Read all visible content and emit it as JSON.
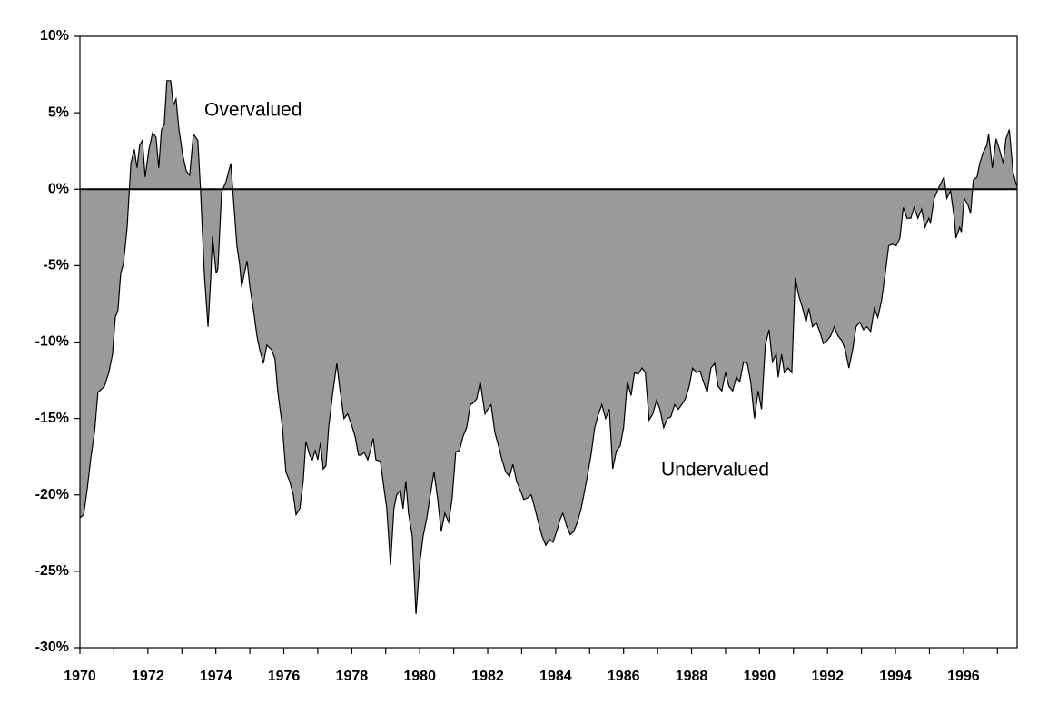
{
  "chart_data": {
    "type": "area",
    "color": "#9a9a9a",
    "line_color": "#000000",
    "annotations": [
      "Overvalued",
      "Undervalued"
    ],
    "xlim": [
      1970,
      1997.58
    ],
    "xticks": [
      1970,
      1972,
      1974,
      1976,
      1978,
      1980,
      1982,
      1984,
      1986,
      1988,
      1990,
      1992,
      1994,
      1996
    ],
    "xminor_ticks": [
      1971,
      1973,
      1975,
      1977,
      1979,
      1981,
      1983,
      1985,
      1987,
      1989,
      1991,
      1993,
      1995,
      1997
    ],
    "ylim": [
      -30,
      10
    ],
    "yticks": [
      {
        "value": -30,
        "label": "-30%"
      },
      {
        "value": -25,
        "label": "-25%"
      },
      {
        "value": -20,
        "label": "-20%"
      },
      {
        "value": -15,
        "label": "-15%"
      },
      {
        "value": -10,
        "label": "-10%"
      },
      {
        "value": -5,
        "label": "-5%"
      },
      {
        "value": 0,
        "label": "0%"
      },
      {
        "value": 5,
        "label": "5%"
      },
      {
        "value": 10,
        "label": "10%"
      }
    ],
    "x": [
      1970.0,
      1970.11,
      1970.21,
      1970.32,
      1970.43,
      1970.53,
      1970.72,
      1970.85,
      1970.96,
      1971.04,
      1971.12,
      1971.2,
      1971.28,
      1971.39,
      1971.5,
      1971.6,
      1971.68,
      1971.76,
      1971.84,
      1971.92,
      1972.03,
      1972.14,
      1972.24,
      1972.32,
      1972.4,
      1972.48,
      1972.56,
      1972.67,
      1972.75,
      1972.83,
      1972.91,
      1973.02,
      1973.13,
      1973.23,
      1973.34,
      1973.47,
      1973.55,
      1973.66,
      1973.77,
      1973.85,
      1973.9,
      1974.01,
      1974.06,
      1974.17,
      1974.3,
      1974.44,
      1974.54,
      1974.62,
      1974.7,
      1974.76,
      1974.84,
      1974.92,
      1975.0,
      1975.1,
      1975.21,
      1975.29,
      1975.4,
      1975.5,
      1975.64,
      1975.74,
      1975.82,
      1975.96,
      1976.06,
      1976.17,
      1976.28,
      1976.36,
      1976.47,
      1976.57,
      1976.65,
      1976.76,
      1976.84,
      1976.92,
      1977.0,
      1977.08,
      1977.16,
      1977.24,
      1977.32,
      1977.43,
      1977.56,
      1977.64,
      1977.77,
      1977.88,
      1978.02,
      1978.1,
      1978.2,
      1978.28,
      1978.36,
      1978.47,
      1978.55,
      1978.63,
      1978.71,
      1978.84,
      1978.92,
      1979.03,
      1979.14,
      1979.24,
      1979.32,
      1979.43,
      1979.51,
      1979.59,
      1979.67,
      1979.78,
      1979.89,
      1980.0,
      1980.1,
      1980.21,
      1980.31,
      1980.42,
      1980.53,
      1980.63,
      1980.74,
      1980.85,
      1980.95,
      1981.06,
      1981.17,
      1981.27,
      1981.38,
      1981.49,
      1981.57,
      1981.68,
      1981.78,
      1981.92,
      1982.0,
      1982.1,
      1982.21,
      1982.32,
      1982.42,
      1982.53,
      1982.64,
      1982.74,
      1982.85,
      1982.96,
      1983.06,
      1983.17,
      1983.28,
      1983.39,
      1983.49,
      1983.6,
      1983.71,
      1983.81,
      1983.92,
      1984.03,
      1984.13,
      1984.21,
      1984.32,
      1984.43,
      1984.53,
      1984.64,
      1984.75,
      1984.83,
      1984.93,
      1985.04,
      1985.15,
      1985.26,
      1985.36,
      1985.47,
      1985.58,
      1985.68,
      1985.79,
      1985.9,
      1986.0,
      1986.11,
      1986.22,
      1986.32,
      1986.43,
      1986.54,
      1986.64,
      1986.75,
      1986.86,
      1986.97,
      1987.07,
      1987.18,
      1987.29,
      1987.39,
      1987.5,
      1987.61,
      1987.71,
      1987.82,
      1987.93,
      1988.03,
      1988.14,
      1988.25,
      1988.35,
      1988.46,
      1988.57,
      1988.68,
      1988.78,
      1988.89,
      1989.0,
      1989.1,
      1989.21,
      1989.32,
      1989.42,
      1989.53,
      1989.64,
      1989.74,
      1989.85,
      1989.96,
      1990.06,
      1990.17,
      1990.28,
      1990.38,
      1990.49,
      1990.55,
      1990.65,
      1990.73,
      1990.84,
      1990.95,
      1991.05,
      1991.16,
      1991.27,
      1991.37,
      1991.45,
      1991.56,
      1991.67,
      1991.77,
      1991.88,
      1991.99,
      1992.09,
      1992.2,
      1992.31,
      1992.42,
      1992.52,
      1992.63,
      1992.74,
      1992.84,
      1992.95,
      1993.06,
      1993.16,
      1993.27,
      1993.38,
      1993.48,
      1993.59,
      1993.7,
      1993.8,
      1993.91,
      1994.02,
      1994.13,
      1994.23,
      1994.34,
      1994.45,
      1994.55,
      1994.66,
      1994.77,
      1994.87,
      1994.98,
      1995.03,
      1995.14,
      1995.25,
      1995.36,
      1995.43,
      1995.51,
      1995.62,
      1995.73,
      1995.78,
      1995.89,
      1995.94,
      1996.02,
      1996.13,
      1996.21,
      1996.29,
      1996.4,
      1996.48,
      1996.58,
      1996.69,
      1996.74,
      1996.85,
      1996.96,
      1997.06,
      1997.17,
      1997.25,
      1997.35,
      1997.46,
      1997.57
    ],
    "values": [
      -21.5,
      -21.3,
      -19.7,
      -17.6,
      -15.9,
      -13.3,
      -12.9,
      -12.0,
      -10.8,
      -8.4,
      -7.9,
      -5.5,
      -4.9,
      -2.5,
      1.7,
      2.6,
      1.4,
      2.9,
      3.2,
      0.8,
      2.6,
      3.7,
      3.4,
      1.4,
      3.9,
      4.2,
      7.1,
      7.1,
      5.5,
      5.9,
      4.0,
      2.3,
      1.2,
      0.9,
      3.6,
      3.2,
      -0.1,
      -5.5,
      -9.0,
      -5.8,
      -3.1,
      -5.5,
      -5.2,
      -0.2,
      0.5,
      1.7,
      -1.3,
      -3.7,
      -4.9,
      -6.4,
      -5.5,
      -4.7,
      -6.4,
      -7.8,
      -9.6,
      -10.5,
      -11.4,
      -10.2,
      -10.5,
      -11.1,
      -13.2,
      -15.6,
      -18.5,
      -19.1,
      -20.0,
      -21.3,
      -20.9,
      -19.1,
      -16.5,
      -17.4,
      -17.7,
      -17.1,
      -17.7,
      -16.6,
      -18.3,
      -18.1,
      -15.6,
      -13.5,
      -11.4,
      -12.9,
      -15.0,
      -14.7,
      -15.6,
      -16.2,
      -17.4,
      -17.4,
      -17.2,
      -17.7,
      -17.1,
      -16.3,
      -17.7,
      -17.8,
      -19.1,
      -20.9,
      -24.6,
      -20.9,
      -20.0,
      -19.7,
      -20.9,
      -19.1,
      -21.2,
      -22.7,
      -27.8,
      -24.5,
      -22.7,
      -21.5,
      -20.0,
      -18.5,
      -20.3,
      -22.4,
      -21.2,
      -21.8,
      -20.3,
      -17.2,
      -17.1,
      -16.2,
      -15.6,
      -14.1,
      -14.0,
      -13.7,
      -12.6,
      -14.7,
      -14.4,
      -14.1,
      -15.9,
      -16.8,
      -17.7,
      -18.5,
      -18.8,
      -18.0,
      -19.1,
      -19.7,
      -20.3,
      -20.2,
      -20.0,
      -20.9,
      -21.8,
      -22.7,
      -23.3,
      -22.9,
      -23.1,
      -22.4,
      -21.6,
      -21.2,
      -22.0,
      -22.6,
      -22.4,
      -21.8,
      -20.9,
      -20.0,
      -18.8,
      -17.4,
      -15.6,
      -14.7,
      -14.1,
      -15.0,
      -14.4,
      -18.3,
      -17.1,
      -16.8,
      -15.6,
      -12.6,
      -13.5,
      -12.0,
      -12.1,
      -11.7,
      -12.0,
      -15.1,
      -14.7,
      -13.8,
      -14.4,
      -15.6,
      -15.0,
      -14.9,
      -14.1,
      -14.4,
      -14.1,
      -13.7,
      -12.9,
      -11.7,
      -12.0,
      -11.9,
      -12.6,
      -13.3,
      -11.7,
      -11.4,
      -12.9,
      -13.2,
      -12.0,
      -12.9,
      -13.2,
      -12.3,
      -12.6,
      -11.3,
      -11.4,
      -12.6,
      -15.0,
      -13.2,
      -14.4,
      -10.2,
      -9.2,
      -11.3,
      -10.8,
      -12.3,
      -10.8,
      -12.0,
      -11.7,
      -12.0,
      -5.8,
      -7.0,
      -7.8,
      -8.7,
      -7.8,
      -9.0,
      -8.7,
      -9.3,
      -10.1,
      -9.9,
      -9.6,
      -9.0,
      -9.6,
      -9.9,
      -10.5,
      -11.7,
      -10.5,
      -9.0,
      -8.7,
      -9.2,
      -9.0,
      -9.3,
      -7.8,
      -8.4,
      -7.3,
      -5.5,
      -3.7,
      -3.6,
      -3.7,
      -3.2,
      -1.2,
      -1.9,
      -1.9,
      -1.2,
      -1.9,
      -1.3,
      -2.5,
      -1.9,
      -2.2,
      -0.6,
      0.0,
      0.5,
      0.8,
      -0.6,
      -0.1,
      -1.9,
      -3.2,
      -2.5,
      -2.8,
      -0.6,
      -1.0,
      -1.6,
      0.6,
      0.8,
      1.7,
      2.4,
      2.9,
      3.6,
      1.4,
      3.3,
      2.6,
      1.7,
      3.3,
      3.9,
      1.1,
      0.2
    ]
  }
}
